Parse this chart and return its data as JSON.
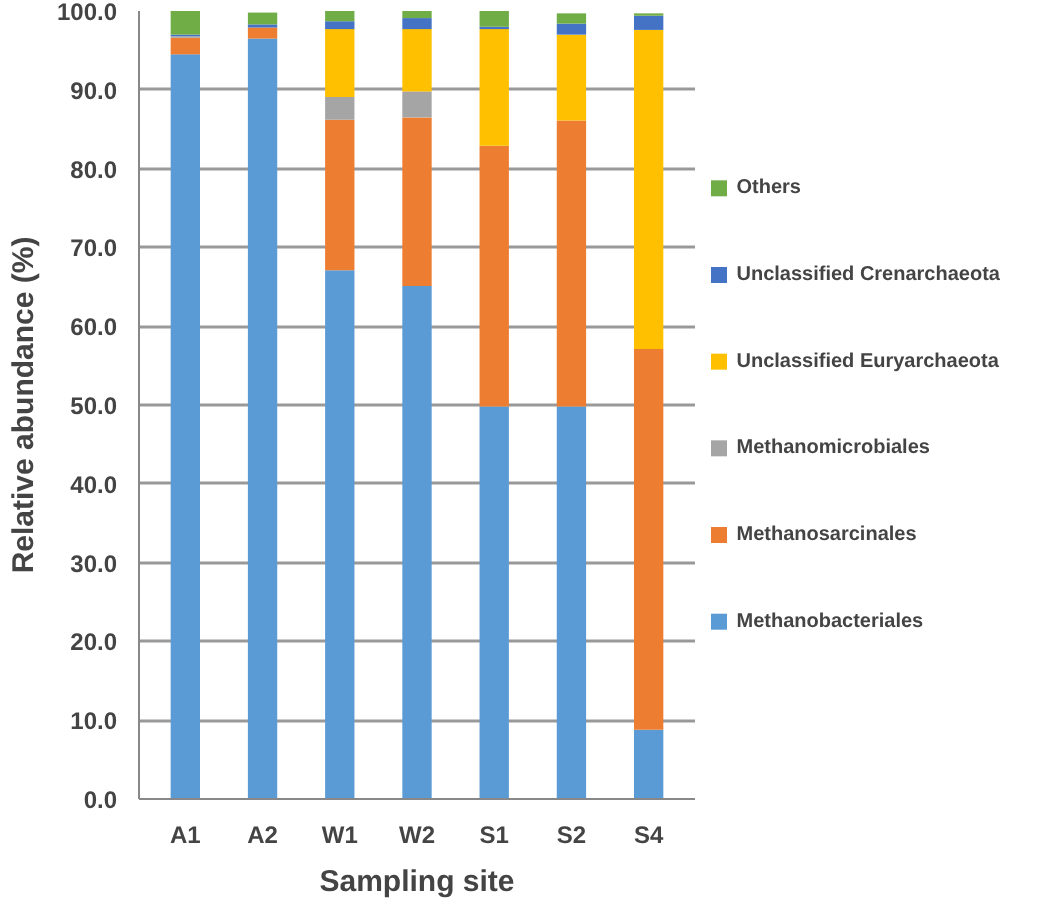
{
  "chart_data": {
    "type": "bar",
    "stacked": true,
    "xlabel": "Sampling site",
    "ylabel": "Relative abundance (%)",
    "categories": [
      "A1",
      "A2",
      "W1",
      "W2",
      "S1",
      "S2",
      "S4"
    ],
    "series": [
      {
        "name": "Methanobacteriales",
        "color": "#5b9bd5",
        "values": [
          94.5,
          96.5,
          67.1,
          65.1,
          49.8,
          49.8,
          8.8
        ]
      },
      {
        "name": "Methanosarcinales",
        "color": "#ed7d31",
        "values": [
          2.1,
          1.4,
          19.1,
          21.4,
          33.1,
          36.3,
          48.3
        ]
      },
      {
        "name": "Methanomicrobiales",
        "color": "#a5a5a5",
        "values": [
          0.2,
          null,
          2.9,
          3.3,
          0,
          null,
          null
        ]
      },
      {
        "name": "Unclassified Euryarchaeota",
        "color": "#ffc000",
        "values": [
          0,
          0,
          8.6,
          7.9,
          14.8,
          10.9,
          40.5
        ]
      },
      {
        "name": "Unclassified Crenarchaeota",
        "color": "#4472c4",
        "values": [
          0.2,
          0.4,
          1.0,
          1.4,
          0.3,
          1.4,
          1.8
        ]
      },
      {
        "name": "Others",
        "color": "#70ad47",
        "values": [
          3.0,
          1.5,
          1.3,
          0.9,
          2.0,
          1.3,
          0.3
        ]
      }
    ],
    "ylim": [
      0,
      100
    ],
    "yticks": [
      {
        "value": 0,
        "label": "0.0"
      },
      {
        "value": 10,
        "label": "10.0"
      },
      {
        "value": 20,
        "label": "20.0"
      },
      {
        "value": 30,
        "label": "30.0"
      },
      {
        "value": 40,
        "label": "40.0"
      },
      {
        "value": 50,
        "label": "50.0"
      },
      {
        "value": 60,
        "label": "60.0"
      },
      {
        "value": 70,
        "label": "70.0"
      },
      {
        "value": 80,
        "label": "80.0"
      },
      {
        "value": 90,
        "label": "90.0"
      },
      {
        "value": 100,
        "label": "100.0"
      }
    ],
    "grid": "y",
    "legend": "right"
  }
}
